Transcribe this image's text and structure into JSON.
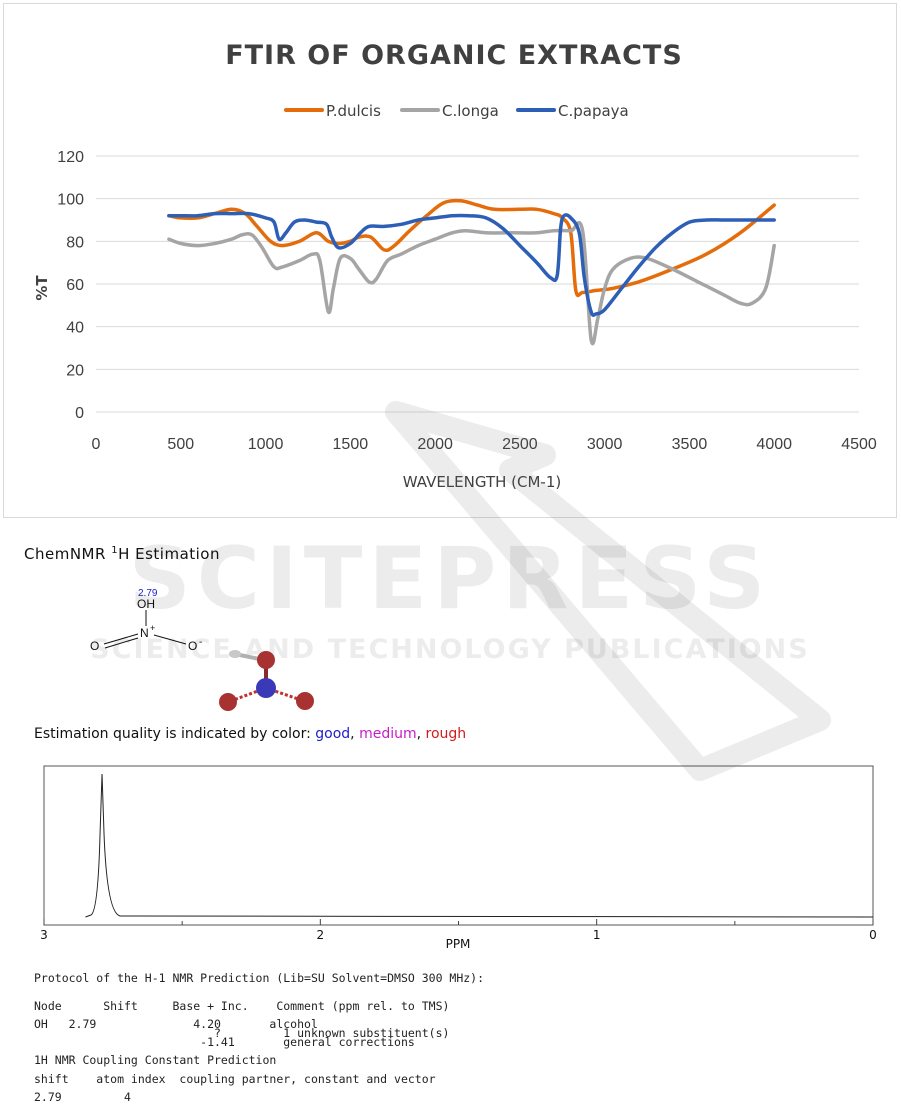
{
  "chart_data": [
    {
      "type": "line",
      "title": "FTIR OF ORGANIC EXTRACTS",
      "xlabel": "WAVELENGTH (CM-1)",
      "ylabel": "%T",
      "xlim": [
        0,
        4500
      ],
      "ylim": [
        0,
        120
      ],
      "x_ticks": [
        "0",
        "500",
        "1000",
        "1500",
        "2000",
        "2500",
        "3000",
        "3500",
        "4000",
        "4500"
      ],
      "y_ticks": [
        "0",
        "20",
        "40",
        "60",
        "80",
        "100",
        "120"
      ],
      "grid": "horizontal",
      "legend_position": "top",
      "series": [
        {
          "name": "P.dulcis",
          "color": "#E46C0A",
          "points": [
            [
              430,
              92
            ],
            [
              500,
              91
            ],
            [
              600,
              91
            ],
            [
              700,
              93
            ],
            [
              800,
              95
            ],
            [
              880,
              93
            ],
            [
              950,
              87
            ],
            [
              1030,
              80
            ],
            [
              1100,
              78
            ],
            [
              1200,
              80
            ],
            [
              1300,
              84
            ],
            [
              1370,
              80
            ],
            [
              1430,
              79
            ],
            [
              1500,
              80
            ],
            [
              1550,
              82
            ],
            [
              1620,
              82
            ],
            [
              1700,
              76
            ],
            [
              1760,
              78
            ],
            [
              1850,
              85
            ],
            [
              1950,
              92
            ],
            [
              2050,
              98
            ],
            [
              2150,
              99
            ],
            [
              2250,
              97
            ],
            [
              2350,
              95
            ],
            [
              2500,
              95
            ],
            [
              2600,
              95
            ],
            [
              2700,
              93
            ],
            [
              2750,
              91
            ],
            [
              2800,
              84
            ],
            [
              2830,
              57
            ],
            [
              2870,
              56
            ],
            [
              2950,
              57
            ],
            [
              3050,
              58
            ],
            [
              3200,
              61
            ],
            [
              3400,
              67
            ],
            [
              3600,
              74
            ],
            [
              3800,
              84
            ],
            [
              4000,
              97
            ]
          ]
        },
        {
          "name": "C.longa",
          "color": "#A5A5A5",
          "points": [
            [
              430,
              81
            ],
            [
              500,
              79
            ],
            [
              600,
              78
            ],
            [
              700,
              79
            ],
            [
              800,
              81
            ],
            [
              860,
              83
            ],
            [
              920,
              83
            ],
            [
              980,
              77
            ],
            [
              1050,
              68
            ],
            [
              1100,
              68
            ],
            [
              1200,
              71
            ],
            [
              1280,
              74
            ],
            [
              1320,
              71
            ],
            [
              1370,
              47
            ],
            [
              1400,
              58
            ],
            [
              1440,
              72
            ],
            [
              1500,
              72
            ],
            [
              1550,
              67
            ],
            [
              1610,
              61
            ],
            [
              1650,
              62
            ],
            [
              1720,
              71
            ],
            [
              1800,
              74
            ],
            [
              1900,
              78
            ],
            [
              2000,
              81
            ],
            [
              2100,
              84
            ],
            [
              2180,
              85
            ],
            [
              2300,
              84
            ],
            [
              2450,
              84
            ],
            [
              2600,
              84
            ],
            [
              2700,
              85
            ],
            [
              2800,
              85
            ],
            [
              2870,
              85
            ],
            [
              2920,
              34
            ],
            [
              2960,
              44
            ],
            [
              3000,
              58
            ],
            [
              3050,
              67
            ],
            [
              3150,
              72
            ],
            [
              3250,
              72
            ],
            [
              3400,
              67
            ],
            [
              3550,
              61
            ],
            [
              3700,
              55
            ],
            [
              3800,
              51
            ],
            [
              3870,
              51
            ],
            [
              3950,
              58
            ],
            [
              4000,
              78
            ]
          ]
        },
        {
          "name": "C.papaya",
          "color": "#2E5FB7",
          "points": [
            [
              430,
              92
            ],
            [
              500,
              92
            ],
            [
              600,
              92
            ],
            [
              700,
              93
            ],
            [
              800,
              93
            ],
            [
              900,
              93
            ],
            [
              1000,
              91
            ],
            [
              1050,
              89
            ],
            [
              1080,
              81
            ],
            [
              1120,
              84
            ],
            [
              1170,
              89
            ],
            [
              1230,
              90
            ],
            [
              1300,
              89
            ],
            [
              1360,
              88
            ],
            [
              1390,
              82
            ],
            [
              1430,
              77
            ],
            [
              1500,
              79
            ],
            [
              1560,
              84
            ],
            [
              1610,
              87
            ],
            [
              1700,
              87
            ],
            [
              1800,
              88
            ],
            [
              1900,
              90
            ],
            [
              2000,
              91
            ],
            [
              2100,
              92
            ],
            [
              2200,
              92
            ],
            [
              2300,
              91
            ],
            [
              2400,
              86
            ],
            [
              2500,
              78
            ],
            [
              2600,
              70
            ],
            [
              2680,
              63
            ],
            [
              2720,
              64
            ],
            [
              2740,
              86
            ],
            [
              2760,
              92
            ],
            [
              2800,
              91
            ],
            [
              2850,
              84
            ],
            [
              2880,
              63
            ],
            [
              2920,
              47
            ],
            [
              2950,
              46
            ],
            [
              3000,
              48
            ],
            [
              3100,
              58
            ],
            [
              3200,
              68
            ],
            [
              3300,
              77
            ],
            [
              3400,
              84
            ],
            [
              3500,
              89
            ],
            [
              3600,
              90
            ],
            [
              3700,
              90
            ],
            [
              3800,
              90
            ],
            [
              4000,
              90
            ]
          ]
        }
      ]
    },
    {
      "type": "line",
      "title": "",
      "xlabel": "PPM",
      "ylabel": "",
      "xlim": [
        3,
        0
      ],
      "x_ticks": [
        "3",
        "2",
        "1",
        "0"
      ],
      "x_minor": [
        2.5,
        1.5,
        0.5
      ],
      "series": [
        {
          "name": "",
          "color": "#222222",
          "peak_ppm": 2.79,
          "baseline_from_ppm": 2.85
        }
      ]
    }
  ],
  "nmr": {
    "title_main": "ChemNMR ",
    "title_sup": "1",
    "title_rest": "H Estimation",
    "shift_label": "2.79",
    "oh_label": "OH",
    "n_label": "N",
    "n_charge": "+",
    "o_left": "O",
    "o_right": "O",
    "o_charge": "-"
  },
  "quality": {
    "prefix": "Estimation quality is indicated by color: ",
    "good": "good",
    "sep1": ", ",
    "medium": "medium",
    "sep2": ", ",
    "rough": "rough"
  },
  "protocol_lines": [
    "Protocol of the H-1 NMR Prediction (Lib=SU Solvent=DMSO 300 MHz):",
    "Node      Shift     Base + Inc.    Comment (ppm rel. to TMS)",
    "OH   2.79              4.20       alcohol",
    "                          ?         1 unknown substituent(s)",
    "                        -1.41       general corrections",
    "1H NMR Coupling Constant Prediction",
    "shift    atom index  coupling partner, constant and vector",
    "2.79         4"
  ],
  "watermark": {
    "line1": "SCITEPRESS",
    "line2": "SCIENCE AND TECHNOLOGY PUBLICATIONS"
  },
  "colors": {
    "grid": "#D9D9D9",
    "text": "#404040",
    "good": "#1C1CC8",
    "medium": "#C81CC8",
    "rough": "#D01C1C"
  }
}
